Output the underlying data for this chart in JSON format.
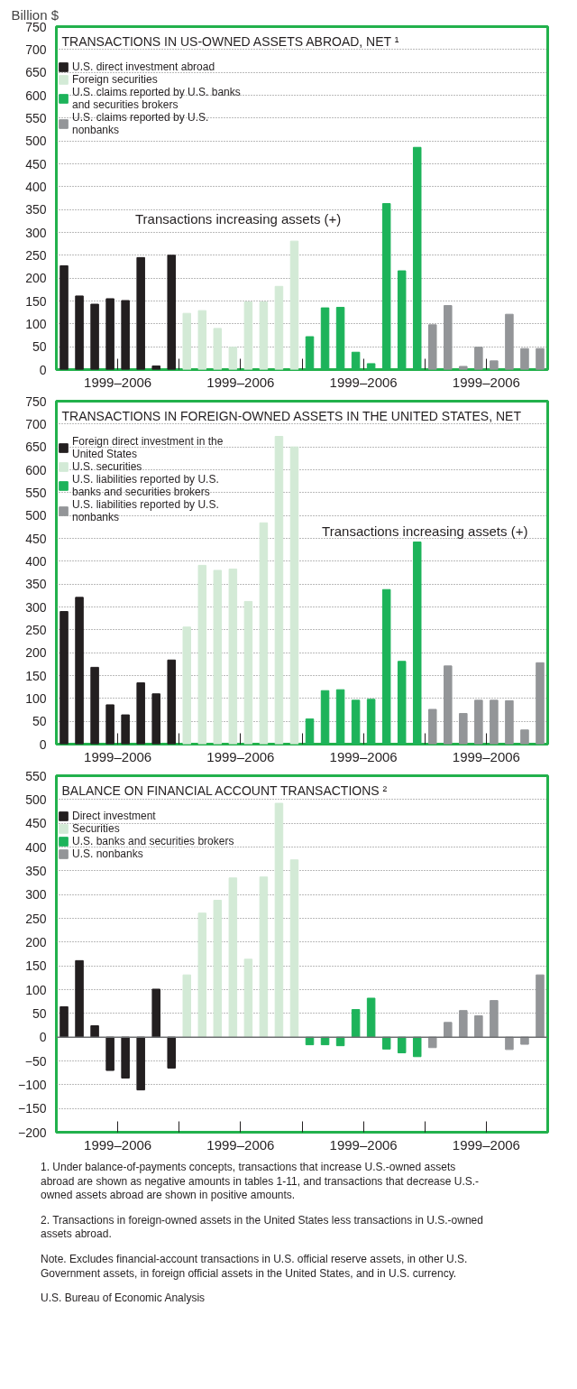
{
  "chart_data": [
    {
      "type": "bar",
      "title": "TRANSACTIONS IN US-OWNED ASSETS ABROAD, NET ¹",
      "ylabel": "Billion $",
      "categories": [
        null,
        null,
        null,
        "1999–2006",
        null,
        null,
        null,
        null,
        null,
        null,
        null,
        "1999–2006",
        null,
        null,
        null,
        null,
        null,
        null,
        null,
        "1999–2006",
        null,
        null,
        null,
        null,
        null,
        null,
        null,
        "1999–2006",
        null,
        null,
        null,
        null
      ],
      "ylim": [
        0,
        750
      ],
      "yticks": [
        0,
        50,
        100,
        150,
        200,
        250,
        300,
        350,
        400,
        450,
        500,
        550,
        600,
        650,
        700,
        750
      ],
      "grid": "y",
      "legend": "top left",
      "annotations": [
        "Transactions increasing assets (+)"
      ],
      "series": [
        {
          "name": "U.S. direct investment abroad",
          "color": "#231f20",
          "values": [
            227,
            161,
            143,
            155,
            151,
            245,
            8,
            250,
            null,
            null,
            null,
            null,
            null,
            null,
            null,
            null,
            null,
            null,
            null,
            null,
            null,
            null,
            null,
            null,
            null,
            null,
            null,
            null,
            null,
            null,
            null,
            null
          ]
        },
        {
          "name": "Foreign securities",
          "color": "#d3ead6",
          "values": [
            null,
            null,
            null,
            null,
            null,
            null,
            null,
            null,
            123,
            129,
            90,
            49,
            148,
            148,
            182,
            281,
            null,
            null,
            null,
            null,
            null,
            null,
            null,
            null,
            null,
            null,
            null,
            null,
            null,
            null,
            null,
            null
          ]
        },
        {
          "name": "U.S. claims reported by U.S. banks and securities brokers",
          "color": "#1db35a",
          "values": [
            null,
            null,
            null,
            null,
            null,
            null,
            null,
            null,
            null,
            null,
            null,
            null,
            null,
            null,
            null,
            null,
            72,
            135,
            136,
            38,
            13,
            363,
            216,
            486,
            null,
            null,
            null,
            null,
            null,
            null,
            null,
            null
          ]
        },
        {
          "name": "U.S. claims reported by U.S. nonbanks",
          "color": "#939598",
          "values": [
            null,
            null,
            null,
            null,
            null,
            null,
            null,
            null,
            null,
            null,
            null,
            null,
            null,
            null,
            null,
            null,
            null,
            null,
            null,
            null,
            null,
            null,
            null,
            null,
            98,
            140,
            7,
            49,
            19,
            121,
            46,
            46
          ]
        }
      ]
    },
    {
      "type": "bar",
      "title": "TRANSACTIONS IN FOREIGN-OWNED ASSETS IN THE UNITED STATES, NET",
      "categories": [
        null,
        null,
        null,
        "1999–2006",
        null,
        null,
        null,
        null,
        null,
        null,
        null,
        "1999–2006",
        null,
        null,
        null,
        null,
        null,
        null,
        null,
        "1999–2006",
        null,
        null,
        null,
        null,
        null,
        null,
        null,
        "1999–2006",
        null,
        null,
        null,
        null
      ],
      "ylim": [
        0,
        750
      ],
      "yticks": [
        0,
        50,
        100,
        150,
        200,
        250,
        300,
        350,
        400,
        450,
        500,
        550,
        600,
        650,
        700,
        750
      ],
      "grid": "y",
      "legend": "top left",
      "annotations": [
        "Transactions increasing assets (+)"
      ],
      "series": [
        {
          "name": "Foreign direct investment in the United States",
          "color": "#231f20",
          "values": [
            290,
            321,
            168,
            86,
            64,
            134,
            110,
            184,
            null,
            null,
            null,
            null,
            null,
            null,
            null,
            null,
            null,
            null,
            null,
            null,
            null,
            null,
            null,
            null,
            null,
            null,
            null,
            null,
            null,
            null,
            null,
            null
          ]
        },
        {
          "name": "U.S. securities",
          "color": "#d3ead6",
          "values": [
            null,
            null,
            null,
            null,
            null,
            null,
            null,
            null,
            256,
            391,
            380,
            383,
            312,
            484,
            673,
            650,
            null,
            null,
            null,
            null,
            null,
            null,
            null,
            null,
            null,
            null,
            null,
            null,
            null,
            null,
            null,
            null
          ]
        },
        {
          "name": "U.S. liabilities reported by U.S. banks and securities brokers",
          "color": "#1db35a",
          "values": [
            null,
            null,
            null,
            null,
            null,
            null,
            null,
            null,
            null,
            null,
            null,
            null,
            null,
            null,
            null,
            null,
            55,
            117,
            119,
            96,
            98,
            338,
            181,
            442,
            null,
            null,
            null,
            null,
            null,
            null,
            null,
            null
          ]
        },
        {
          "name": "U.S. liabilities reported by U.S. nonbanks",
          "color": "#939598",
          "values": [
            null,
            null,
            null,
            null,
            null,
            null,
            null,
            null,
            null,
            null,
            null,
            null,
            null,
            null,
            null,
            null,
            null,
            null,
            null,
            null,
            null,
            null,
            null,
            null,
            76,
            171,
            67,
            96,
            96,
            95,
            31,
            178
          ]
        }
      ]
    },
    {
      "type": "bar",
      "title": "BALANCE ON FINANCIAL ACCOUNT TRANSACTIONS ²",
      "categories": [
        null,
        null,
        null,
        "1999–2006",
        null,
        null,
        null,
        null,
        null,
        null,
        null,
        "1999–2006",
        null,
        null,
        null,
        null,
        null,
        null,
        null,
        "1999–2006",
        null,
        null,
        null,
        null,
        null,
        null,
        null,
        "1999–2006",
        null,
        null,
        null,
        null
      ],
      "ylim": [
        -200,
        550
      ],
      "yticks": [
        -200,
        -150,
        -100,
        -50,
        0,
        50,
        100,
        150,
        200,
        250,
        300,
        350,
        400,
        450,
        500,
        550
      ],
      "grid": "y",
      "legend": "top left",
      "ref_lines": [
        {
          "axis": "y",
          "value": 0,
          "color": "#6d6e71"
        }
      ],
      "annotations": [
        "1. Under balance-of-payments concepts, transactions that increase U.S.-owned assets abroad are shown as negative amounts in tables 1-11, and transactions that decrease U.S.-owned assets abroad are shown in positive amounts.",
        "2. Transactions in foreign-owned assets in the United States less transactions in U.S.-owned assets abroad.",
        "Note. Excludes financial-account transactions in U.S. official reserve assets, in other U.S. Government assets, in foreign official assets in the United States, and in U.S. currency.",
        "U.S. Bureau of Economic Analysis"
      ],
      "series": [
        {
          "name": "Direct investment",
          "color": "#231f20",
          "values": [
            64,
            161,
            24,
            -70,
            -86,
            -111,
            101,
            -65,
            null,
            null,
            null,
            null,
            null,
            null,
            null,
            null,
            null,
            null,
            null,
            null,
            null,
            null,
            null,
            null,
            null,
            null,
            null,
            null,
            null,
            null,
            null,
            null
          ]
        },
        {
          "name": "Securities",
          "color": "#d3ead6",
          "values": [
            null,
            null,
            null,
            null,
            null,
            null,
            null,
            null,
            131,
            261,
            288,
            335,
            164,
            337,
            492,
            373,
            null,
            null,
            null,
            null,
            null,
            null,
            null,
            null,
            null,
            null,
            null,
            null,
            null,
            null,
            null,
            null
          ]
        },
        {
          "name": "U.S. banks and securities brokers",
          "color": "#1db35a",
          "values": [
            null,
            null,
            null,
            null,
            null,
            null,
            null,
            null,
            null,
            null,
            null,
            null,
            null,
            null,
            null,
            null,
            -16,
            -16,
            -18,
            58,
            82,
            -25,
            -33,
            -41,
            null,
            null,
            null,
            null,
            null,
            null,
            null,
            null
          ]
        },
        {
          "name": "U.S. nonbanks",
          "color": "#939598",
          "values": [
            null,
            null,
            null,
            null,
            null,
            null,
            null,
            null,
            null,
            null,
            null,
            null,
            null,
            null,
            null,
            null,
            null,
            null,
            null,
            null,
            null,
            null,
            null,
            null,
            -22,
            31,
            56,
            45,
            77,
            -26,
            -15,
            131
          ]
        }
      ]
    }
  ]
}
